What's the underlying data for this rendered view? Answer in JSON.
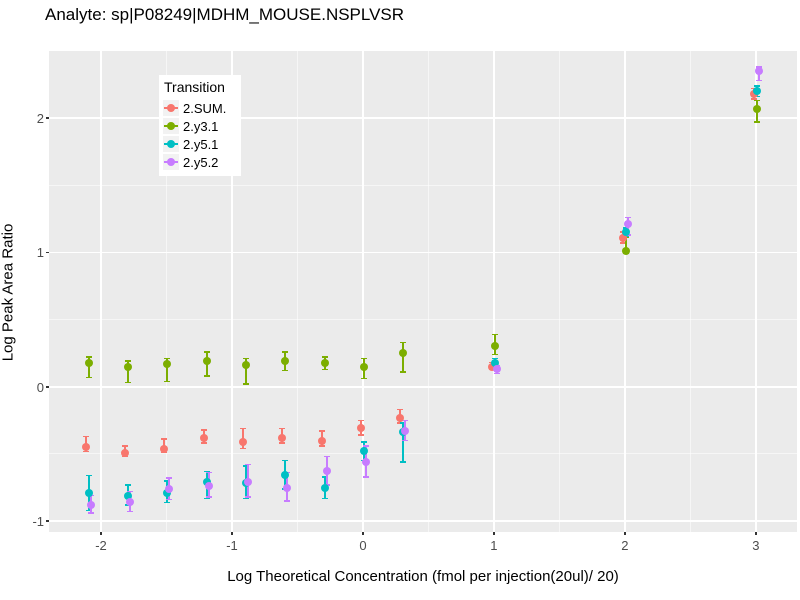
{
  "title": "Analyte: sp|P08249|MDHM_MOUSE.NSPLVSR",
  "legend": {
    "title": "Transition",
    "items": [
      {
        "label": "2.SUM.",
        "color": "#F8766D"
      },
      {
        "label": "2.y3.1",
        "color": "#7CAE00"
      },
      {
        "label": "2.y5.1",
        "color": "#00BFC4"
      },
      {
        "label": "2.y5.2",
        "color": "#C77CFF"
      }
    ]
  },
  "colors": {
    "panel_background": "#EBEBEB",
    "gridline": "#FFFFFF",
    "tick_label": "#4D4D4D",
    "text": "#000000"
  },
  "chart_data": {
    "type": "scatter",
    "title": "Analyte: sp|P08249|MDHM_MOUSE.NSPLVSR",
    "xlabel": "Log Theoretical Concentration (fmol per injection(20ul)/ 20)",
    "ylabel": "Log Peak Area Ratio",
    "legend_title": "Transition",
    "legend_position": "inside top-left",
    "grid": true,
    "xlim": [
      -2.397,
      3.314
    ],
    "ylim": [
      -1.081,
      2.499
    ],
    "xticks": [
      -2,
      -1,
      0,
      1,
      2,
      3
    ],
    "xtick_labels": [
      "-2",
      "-1",
      "0",
      "1",
      "2",
      "3"
    ],
    "yticks": [
      -1,
      0,
      1,
      2
    ],
    "ytick_labels": [
      "-1",
      "0",
      "1",
      "2"
    ],
    "xticks_minor": [
      -1.5,
      -0.5,
      0.5,
      1.5,
      2.5
    ],
    "yticks_minor": [
      -0.5,
      0.5,
      1.5,
      2.5
    ],
    "error_bars": true,
    "series": [
      {
        "name": "2.SUM.",
        "color": "#F8766D",
        "dx": -2,
        "points": [
          {
            "x": -2.1,
            "y": -0.45,
            "lo": -0.48,
            "hi": -0.37
          },
          {
            "x": -1.8,
            "y": -0.49,
            "lo": -0.52,
            "hi": -0.44
          },
          {
            "x": -1.5,
            "y": -0.46,
            "lo": -0.49,
            "hi": -0.39
          },
          {
            "x": -1.2,
            "y": -0.38,
            "lo": -0.42,
            "hi": -0.32
          },
          {
            "x": -0.9,
            "y": -0.41,
            "lo": -0.46,
            "hi": -0.31
          },
          {
            "x": -0.6,
            "y": -0.38,
            "lo": -0.42,
            "hi": -0.31
          },
          {
            "x": -0.3,
            "y": -0.4,
            "lo": -0.44,
            "hi": -0.33
          },
          {
            "x": 0.0,
            "y": -0.31,
            "lo": -0.36,
            "hi": -0.25
          },
          {
            "x": 0.3,
            "y": -0.23,
            "lo": -0.27,
            "hi": -0.17
          },
          {
            "x": 1.0,
            "y": 0.15,
            "lo": 0.13,
            "hi": 0.18
          },
          {
            "x": 2.0,
            "y": 1.11,
            "lo": 1.07,
            "hi": 1.15
          },
          {
            "x": 3.0,
            "y": 2.18,
            "lo": 2.14,
            "hi": 2.22
          }
        ]
      },
      {
        "name": "2.y3.1",
        "color": "#7CAE00",
        "dx": 1,
        "points": [
          {
            "x": -2.1,
            "y": 0.18,
            "lo": 0.07,
            "hi": 0.22
          },
          {
            "x": -1.8,
            "y": 0.15,
            "lo": 0.03,
            "hi": 0.19
          },
          {
            "x": -1.5,
            "y": 0.17,
            "lo": 0.04,
            "hi": 0.21
          },
          {
            "x": -1.2,
            "y": 0.19,
            "lo": 0.08,
            "hi": 0.26
          },
          {
            "x": -0.9,
            "y": 0.16,
            "lo": 0.02,
            "hi": 0.21
          },
          {
            "x": -0.6,
            "y": 0.19,
            "lo": 0.12,
            "hi": 0.26
          },
          {
            "x": -0.3,
            "y": 0.18,
            "lo": 0.13,
            "hi": 0.22
          },
          {
            "x": 0.0,
            "y": 0.15,
            "lo": 0.06,
            "hi": 0.21
          },
          {
            "x": 0.3,
            "y": 0.25,
            "lo": 0.11,
            "hi": 0.33
          },
          {
            "x": 1.0,
            "y": 0.3,
            "lo": 0.24,
            "hi": 0.39
          },
          {
            "x": 2.0,
            "y": 1.01,
            "lo": 0.99,
            "hi": 1.11
          },
          {
            "x": 3.0,
            "y": 2.07,
            "lo": 1.97,
            "hi": 2.13
          }
        ]
      },
      {
        "name": "2.y5.1",
        "color": "#00BFC4",
        "dx": 1,
        "points": [
          {
            "x": -2.1,
            "y": -0.79,
            "lo": -0.92,
            "hi": -0.66
          },
          {
            "x": -1.8,
            "y": -0.81,
            "lo": -0.88,
            "hi": -0.73
          },
          {
            "x": -1.5,
            "y": -0.79,
            "lo": -0.86,
            "hi": -0.7
          },
          {
            "x": -1.2,
            "y": -0.71,
            "lo": -0.83,
            "hi": -0.63
          },
          {
            "x": -0.9,
            "y": -0.72,
            "lo": -0.83,
            "hi": -0.59
          },
          {
            "x": -0.6,
            "y": -0.66,
            "lo": -0.76,
            "hi": -0.55
          },
          {
            "x": -0.3,
            "y": -0.75,
            "lo": -0.83,
            "hi": -0.67
          },
          {
            "x": 0.0,
            "y": -0.48,
            "lo": -0.55,
            "hi": -0.41
          },
          {
            "x": 0.3,
            "y": -0.34,
            "lo": -0.56,
            "hi": -0.27
          },
          {
            "x": 1.0,
            "y": 0.18,
            "lo": 0.15,
            "hi": 0.21
          },
          {
            "x": 2.0,
            "y": 1.15,
            "lo": 1.12,
            "hi": 1.18
          },
          {
            "x": 3.0,
            "y": 2.2,
            "lo": 2.16,
            "hi": 2.24
          }
        ]
      },
      {
        "name": "2.y5.2",
        "color": "#C77CFF",
        "dx": 3,
        "points": [
          {
            "x": -2.1,
            "y": -0.88,
            "lo": -0.94,
            "hi": -0.81
          },
          {
            "x": -1.8,
            "y": -0.86,
            "lo": -0.93,
            "hi": -0.78
          },
          {
            "x": -1.5,
            "y": -0.76,
            "lo": -0.84,
            "hi": -0.68
          },
          {
            "x": -1.2,
            "y": -0.74,
            "lo": -0.82,
            "hi": -0.64
          },
          {
            "x": -0.9,
            "y": -0.71,
            "lo": -0.82,
            "hi": -0.58
          },
          {
            "x": -0.6,
            "y": -0.75,
            "lo": -0.85,
            "hi": -0.64
          },
          {
            "x": -0.3,
            "y": -0.63,
            "lo": -0.73,
            "hi": -0.52
          },
          {
            "x": 0.0,
            "y": -0.56,
            "lo": -0.67,
            "hi": -0.44
          },
          {
            "x": 0.3,
            "y": -0.33,
            "lo": -0.4,
            "hi": -0.25
          },
          {
            "x": 1.0,
            "y": 0.13,
            "lo": 0.1,
            "hi": 0.16
          },
          {
            "x": 2.0,
            "y": 1.21,
            "lo": 1.13,
            "hi": 1.26
          },
          {
            "x": 3.0,
            "y": 2.35,
            "lo": 2.28,
            "hi": 2.38
          }
        ]
      }
    ]
  }
}
